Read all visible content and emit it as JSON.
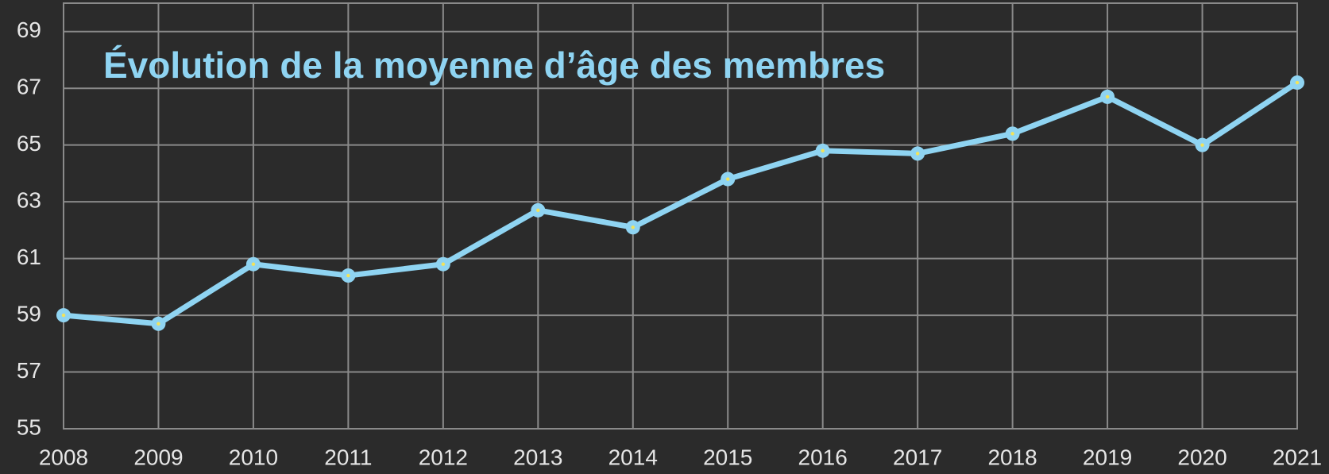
{
  "chart_data": {
    "type": "line",
    "title": "Évolution de la moyenne d’âge des membres",
    "x": [
      2008,
      2009,
      2010,
      2011,
      2012,
      2013,
      2014,
      2015,
      2016,
      2017,
      2018,
      2019,
      2020,
      2021
    ],
    "series": [
      {
        "color": "#8fd4f2",
        "marker_center_color": "#f2e35a",
        "values": [
          59.0,
          58.7,
          60.8,
          60.4,
          60.8,
          62.7,
          62.1,
          63.8,
          64.8,
          64.7,
          65.4,
          66.7,
          65.0,
          67.2
        ]
      }
    ],
    "xlim": [
      2008,
      2021
    ],
    "xticks": [
      2008,
      2009,
      2010,
      2011,
      2012,
      2013,
      2014,
      2015,
      2016,
      2017,
      2018,
      2019,
      2020,
      2021
    ],
    "ylim": [
      55,
      70
    ],
    "yticks": [
      55,
      57,
      59,
      61,
      63,
      65,
      67,
      69
    ],
    "grid": true
  }
}
